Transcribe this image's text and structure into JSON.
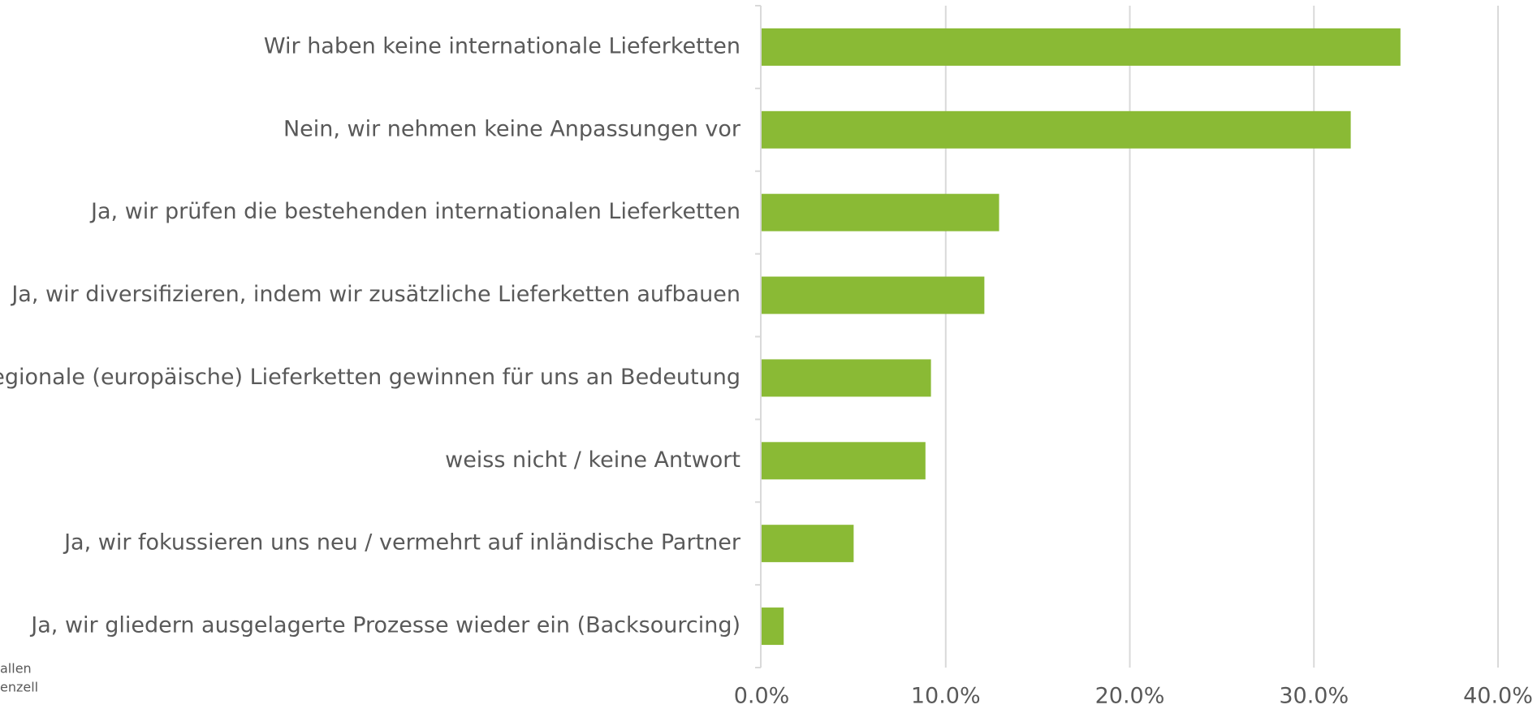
{
  "chart_data": {
    "type": "bar",
    "orientation": "horizontal",
    "categories": [
      "Wir haben keine internationale Lieferketten",
      "Nein, wir nehmen keine Anpassungen vor",
      "Ja, wir prüfen die bestehenden internationalen Lieferketten",
      "Ja, wir diversifizieren, indem wir zusätzliche Lieferketten aufbauen",
      "Ja, regionale (europäische) Lieferketten gewinnen für uns an Bedeutung",
      "weiss nicht / keine Antwort",
      "Ja, wir fokussieren uns neu / vermehrt auf inländische Partner",
      "Ja, wir gliedern ausgelagerte Prozesse wieder ein (Backsourcing)"
    ],
    "values": [
      34.7,
      32.0,
      12.9,
      12.1,
      9.2,
      8.9,
      5.0,
      1.2
    ],
    "color": "#8aba35",
    "xlim": [
      0,
      40
    ],
    "xticks": [
      {
        "value": 0,
        "label": "0.0%"
      },
      {
        "value": 10,
        "label": "10.0%"
      },
      {
        "value": 20,
        "label": "20.0%"
      },
      {
        "value": 30,
        "label": "30.0%"
      },
      {
        "value": 40,
        "label": "40.0%"
      }
    ],
    "grid": true,
    "source_lines": [
      "allen",
      "enzell"
    ]
  }
}
